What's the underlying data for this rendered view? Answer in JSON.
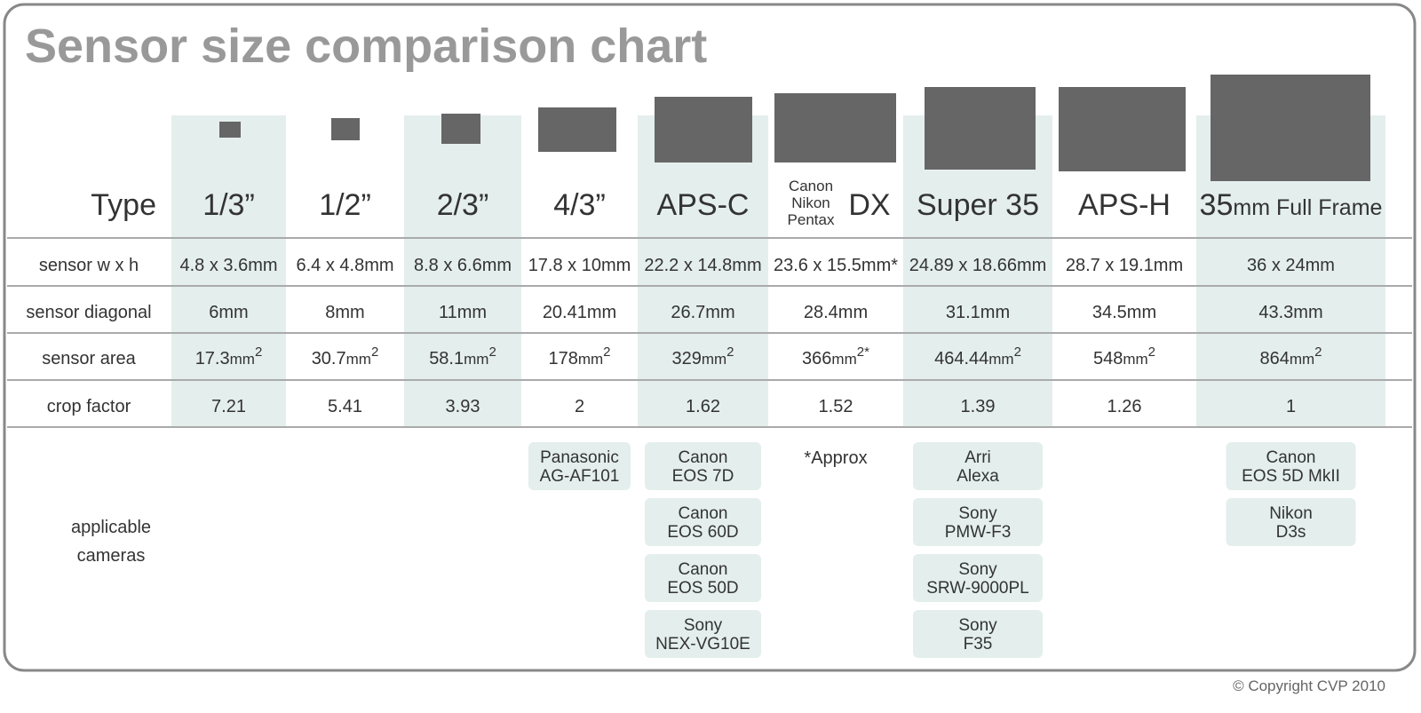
{
  "title": "Sensor size comparison chart",
  "table": {
    "row_headers": [
      "Type",
      "sensor w x h",
      "sensor diagonal",
      "sensor area",
      "crop factor"
    ],
    "cameras_header": [
      "applicable",
      "cameras"
    ],
    "columns": [
      {
        "type": "1/3”",
        "size": "4.8 x 3.6mm",
        "diagonal": "6mm",
        "area": {
          "value": "17.3",
          "unit": "mm",
          "sup": "2"
        },
        "crop": "7.21",
        "cameras": []
      },
      {
        "type": "1/2”",
        "size": "6.4 x 4.8mm",
        "diagonal": "8mm",
        "area": {
          "value": "30.7",
          "unit": "mm",
          "sup": "2"
        },
        "crop": "5.41",
        "cameras": []
      },
      {
        "type": "2/3”",
        "size": "8.8 x 6.6mm",
        "diagonal": "11mm",
        "area": {
          "value": "58.1",
          "unit": "mm",
          "sup": "2"
        },
        "crop": "3.93",
        "cameras": []
      },
      {
        "type": "4/3”",
        "size": "17.8 x 10mm",
        "diagonal": "20.41mm",
        "area": {
          "value": "178",
          "unit": "mm",
          "sup": "2"
        },
        "crop": "2",
        "cameras": [
          [
            "Panasonic",
            "AG-AF101"
          ]
        ]
      },
      {
        "type": "APS-C",
        "size": "22.2 x 14.8mm",
        "diagonal": "26.7mm",
        "area": {
          "value": "329",
          "unit": "mm",
          "sup": "2"
        },
        "crop": "1.62",
        "cameras": [
          [
            "Canon",
            "EOS 7D"
          ],
          [
            "Canon",
            "EOS 60D"
          ],
          [
            "Canon",
            "EOS 50D"
          ],
          [
            "Sony",
            "NEX-VG10E"
          ]
        ]
      },
      {
        "type": "DX",
        "brands": [
          "Canon",
          "Nikon",
          "Pentax"
        ],
        "size": "23.6 x 15.5mm*",
        "diagonal": "28.4mm",
        "area": {
          "value": "366",
          "unit": "mm",
          "sup": "2*"
        },
        "crop": "1.52",
        "cameras": [],
        "note": "*Approx"
      },
      {
        "type": "Super 35",
        "size": "24.89 x 18.66mm",
        "diagonal": "31.1mm",
        "area": {
          "value": "464.44",
          "unit": "mm",
          "sup": "2"
        },
        "crop": "1.39",
        "cameras": [
          [
            "Arri",
            "Alexa"
          ],
          [
            "Sony",
            "PMW-F3"
          ],
          [
            "Sony",
            "SRW-9000PL"
          ],
          [
            "Sony",
            "F35"
          ]
        ]
      },
      {
        "type": "APS-H",
        "size": "28.7 x 19.1mm",
        "diagonal": "34.5mm",
        "area": {
          "value": "548",
          "unit": "mm",
          "sup": "2"
        },
        "crop": "1.26",
        "cameras": []
      },
      {
        "type": "35",
        "small": "mm Full Frame",
        "size": "36 x 24mm",
        "diagonal": "43.3mm",
        "area": {
          "value": "864",
          "unit": "mm",
          "sup": "2"
        },
        "crop": "1",
        "cameras": [
          [
            "Canon",
            "EOS 5D MkII"
          ],
          [
            "Nikon",
            "D3s"
          ]
        ]
      }
    ]
  },
  "copyright": "© Copyright CVP 2010"
}
